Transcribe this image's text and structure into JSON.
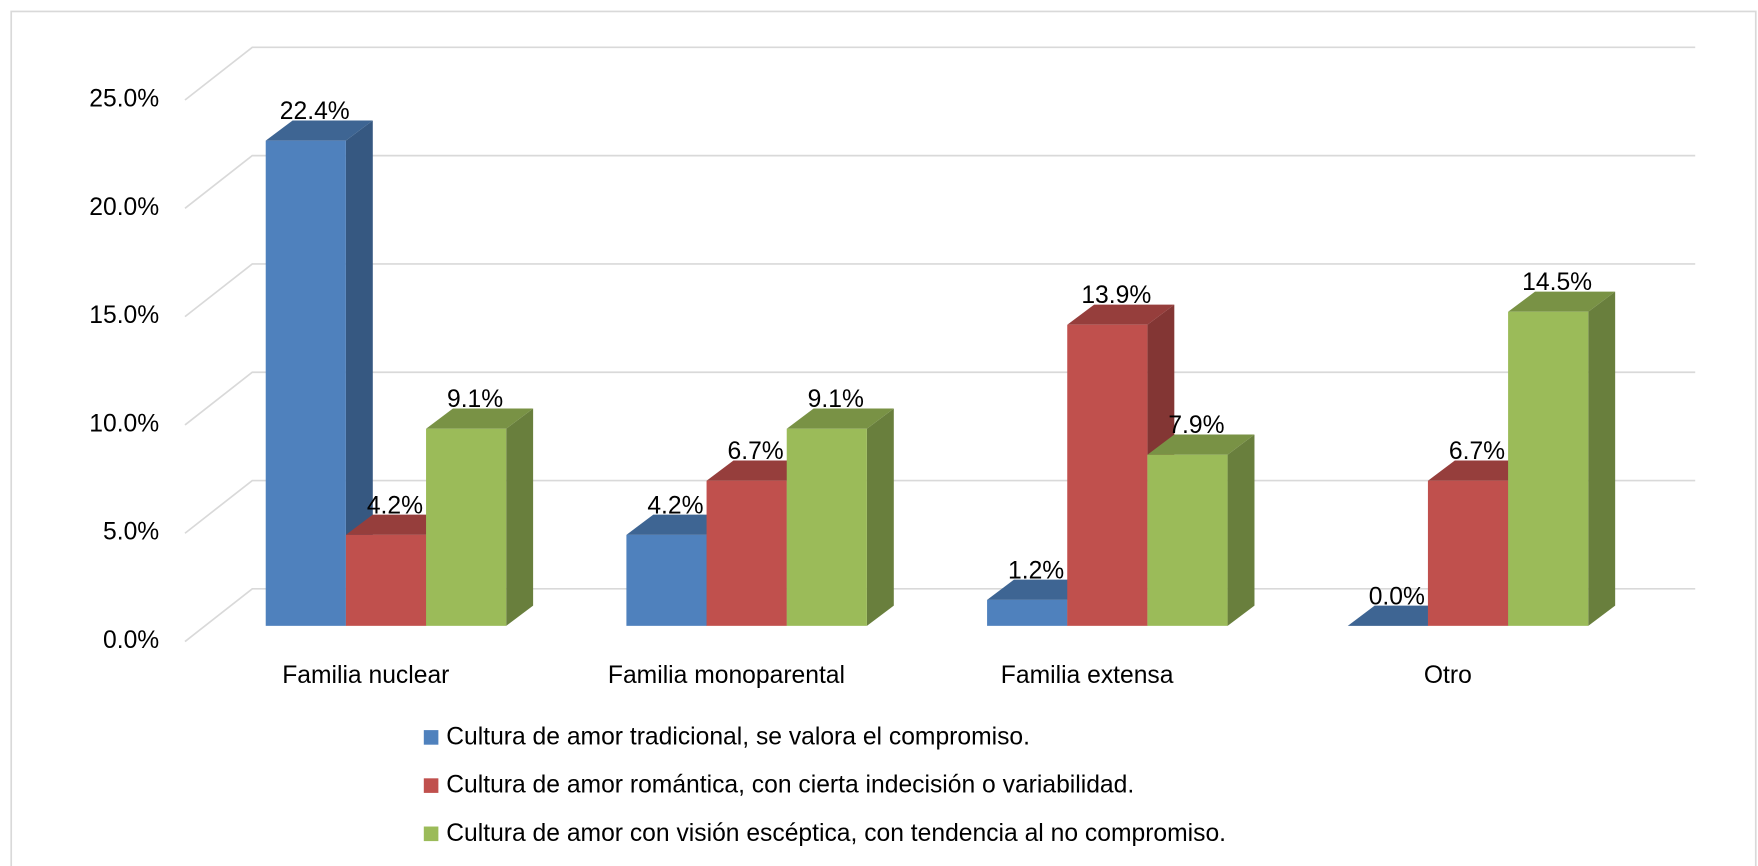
{
  "chart_data": {
    "type": "bar3d",
    "categories": [
      "Familia nuclear",
      "Familia monoparental",
      "Familia extensa",
      "Otro"
    ],
    "series": [
      {
        "name": "Cultura de amor tradicional, se valora el compromiso.",
        "color": "#4f81bd",
        "values": [
          22.4,
          4.2,
          1.2,
          0.0
        ],
        "value_labels": [
          "22.4%",
          "4.2%",
          "1.2%",
          "0.0%"
        ]
      },
      {
        "name": "Cultura de amor romántica, con cierta indecisión o variabilidad.",
        "color": "#c0504d",
        "values": [
          4.2,
          6.7,
          13.9,
          6.7
        ],
        "value_labels": [
          "4.2%",
          "6.7%",
          "13.9%",
          "6.7%"
        ]
      },
      {
        "name": "Cultura de amor con visión escéptica, con tendencia al no compromiso.",
        "color": "#9bbb59",
        "values": [
          9.1,
          9.1,
          7.9,
          14.5
        ],
        "value_labels": [
          "9.1%",
          "9.1%",
          "7.9%",
          "14.5%"
        ]
      }
    ],
    "ylim": [
      0,
      25
    ],
    "yticks": [
      {
        "value": 0,
        "label": "0.0%"
      },
      {
        "value": 5,
        "label": "5.0%"
      },
      {
        "value": 10,
        "label": "10.0%"
      },
      {
        "value": 15,
        "label": "15.0%"
      },
      {
        "value": 20,
        "label": "20.0%"
      },
      {
        "value": 25,
        "label": "25.0%"
      }
    ],
    "grid": true,
    "legend": "bottom"
  }
}
